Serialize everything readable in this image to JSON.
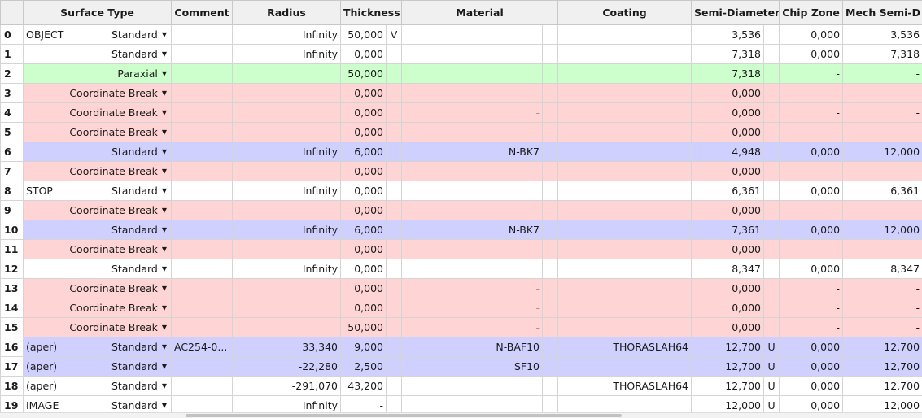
{
  "headers": {
    "surface_type": "Surface Type",
    "comment": "Comment",
    "radius": "Radius",
    "thickness": "Thickness",
    "material": "Material",
    "coating": "Coating",
    "semi_diameter": "Semi-Diameter",
    "chip_zone": "Chip Zone",
    "mech_semi_d": "Mech Semi-D"
  },
  "rows": [
    {
      "num": "0",
      "label": "OBJECT",
      "type": "Standard",
      "comment": "",
      "radius": "Infinity",
      "thickness": "50,000",
      "thick_solve": "V",
      "material": "",
      "coating": "",
      "semi_diameter": "3,536",
      "sd_solve": "",
      "chip_zone": "0,000",
      "mech": "3,536",
      "style": "plain"
    },
    {
      "num": "1",
      "label": "",
      "type": "Standard",
      "comment": "",
      "radius": "Infinity",
      "thickness": "0,000",
      "thick_solve": "",
      "material": "",
      "coating": "",
      "semi_diameter": "7,318",
      "sd_solve": "",
      "chip_zone": "0,000",
      "mech": "7,318",
      "style": "plain"
    },
    {
      "num": "2",
      "label": "",
      "type": "Paraxial",
      "comment": "",
      "radius": "",
      "thickness": "50,000",
      "thick_solve": "",
      "material": "",
      "coating": "",
      "semi_diameter": "7,318",
      "sd_solve": "",
      "chip_zone": "-",
      "mech": "-",
      "style": "paraxial"
    },
    {
      "num": "3",
      "label": "",
      "type": "Coordinate Break",
      "comment": "",
      "radius": "",
      "thickness": "0,000",
      "thick_solve": "",
      "material": "-",
      "coating": "",
      "semi_diameter": "0,000",
      "sd_solve": "",
      "chip_zone": "-",
      "mech": "-",
      "style": "cbreak"
    },
    {
      "num": "4",
      "label": "",
      "type": "Coordinate Break",
      "comment": "",
      "radius": "",
      "thickness": "0,000",
      "thick_solve": "",
      "material": "-",
      "coating": "",
      "semi_diameter": "0,000",
      "sd_solve": "",
      "chip_zone": "-",
      "mech": "-",
      "style": "cbreak"
    },
    {
      "num": "5",
      "label": "",
      "type": "Coordinate Break",
      "comment": "",
      "radius": "",
      "thickness": "0,000",
      "thick_solve": "",
      "material": "-",
      "coating": "",
      "semi_diameter": "0,000",
      "sd_solve": "",
      "chip_zone": "-",
      "mech": "-",
      "style": "cbreak"
    },
    {
      "num": "6",
      "label": "",
      "type": "Standard",
      "comment": "",
      "radius": "Infinity",
      "thickness": "6,000",
      "thick_solve": "",
      "material": "N-BK7",
      "coating": "",
      "semi_diameter": "4,948",
      "sd_solve": "",
      "chip_zone": "0,000",
      "mech": "12,000",
      "style": "lens"
    },
    {
      "num": "7",
      "label": "",
      "type": "Coordinate Break",
      "comment": "",
      "radius": "",
      "thickness": "0,000",
      "thick_solve": "",
      "material": "-",
      "coating": "",
      "semi_diameter": "0,000",
      "sd_solve": "",
      "chip_zone": "-",
      "mech": "-",
      "style": "cbreak"
    },
    {
      "num": "8",
      "label": "STOP",
      "type": "Standard",
      "comment": "",
      "radius": "Infinity",
      "thickness": "0,000",
      "thick_solve": "",
      "material": "",
      "coating": "",
      "semi_diameter": "6,361",
      "sd_solve": "",
      "chip_zone": "0,000",
      "mech": "6,361",
      "style": "plain"
    },
    {
      "num": "9",
      "label": "",
      "type": "Coordinate Break",
      "comment": "",
      "radius": "",
      "thickness": "0,000",
      "thick_solve": "",
      "material": "-",
      "coating": "",
      "semi_diameter": "0,000",
      "sd_solve": "",
      "chip_zone": "-",
      "mech": "-",
      "style": "cbreak"
    },
    {
      "num": "10",
      "label": "",
      "type": "Standard",
      "comment": "",
      "radius": "Infinity",
      "thickness": "6,000",
      "thick_solve": "",
      "material": "N-BK7",
      "coating": "",
      "semi_diameter": "7,361",
      "sd_solve": "",
      "chip_zone": "0,000",
      "mech": "12,000",
      "style": "lens"
    },
    {
      "num": "11",
      "label": "",
      "type": "Coordinate Break",
      "comment": "",
      "radius": "",
      "thickness": "0,000",
      "thick_solve": "",
      "material": "-",
      "coating": "",
      "semi_diameter": "0,000",
      "sd_solve": "",
      "chip_zone": "-",
      "mech": "-",
      "style": "cbreak"
    },
    {
      "num": "12",
      "label": "",
      "type": "Standard",
      "comment": "",
      "radius": "Infinity",
      "thickness": "0,000",
      "thick_solve": "",
      "material": "",
      "coating": "",
      "semi_diameter": "8,347",
      "sd_solve": "",
      "chip_zone": "0,000",
      "mech": "8,347",
      "style": "plain"
    },
    {
      "num": "13",
      "label": "",
      "type": "Coordinate Break",
      "comment": "",
      "radius": "",
      "thickness": "0,000",
      "thick_solve": "",
      "material": "-",
      "coating": "",
      "semi_diameter": "0,000",
      "sd_solve": "",
      "chip_zone": "-",
      "mech": "-",
      "style": "cbreak"
    },
    {
      "num": "14",
      "label": "",
      "type": "Coordinate Break",
      "comment": "",
      "radius": "",
      "thickness": "0,000",
      "thick_solve": "",
      "material": "-",
      "coating": "",
      "semi_diameter": "0,000",
      "sd_solve": "",
      "chip_zone": "-",
      "mech": "-",
      "style": "cbreak"
    },
    {
      "num": "15",
      "label": "",
      "type": "Coordinate Break",
      "comment": "",
      "radius": "",
      "thickness": "50,000",
      "thick_solve": "",
      "material": "-",
      "coating": "",
      "semi_diameter": "0,000",
      "sd_solve": "",
      "chip_zone": "-",
      "mech": "-",
      "style": "cbreak"
    },
    {
      "num": "16",
      "label": "(aper)",
      "type": "Standard",
      "comment": "AC254-0...",
      "radius": "33,340",
      "thickness": "9,000",
      "thick_solve": "",
      "material": "N-BAF10",
      "coating": "THORASLAH64",
      "semi_diameter": "12,700",
      "sd_solve": "U",
      "chip_zone": "0,000",
      "mech": "12,700",
      "style": "lens"
    },
    {
      "num": "17",
      "label": "(aper)",
      "type": "Standard",
      "comment": "",
      "radius": "-22,280",
      "thickness": "2,500",
      "thick_solve": "",
      "material": "SF10",
      "coating": "",
      "semi_diameter": "12,700",
      "sd_solve": "U",
      "chip_zone": "0,000",
      "mech": "12,700",
      "style": "lens"
    },
    {
      "num": "18",
      "label": "(aper)",
      "type": "Standard",
      "comment": "",
      "radius": "-291,070",
      "thickness": "43,200",
      "thick_solve": "",
      "material": "",
      "coating": "THORASLAH64",
      "semi_diameter": "12,700",
      "sd_solve": "U",
      "chip_zone": "0,000",
      "mech": "12,700",
      "style": "plain"
    },
    {
      "num": "19",
      "label": "IMAGE",
      "type": "Standard",
      "comment": "",
      "radius": "Infinity",
      "thickness": "-",
      "thick_solve": "",
      "material": "",
      "coating": "",
      "semi_diameter": "12,000",
      "sd_solve": "U",
      "chip_zone": "0,000",
      "mech": "12,000",
      "style": "plain"
    }
  ],
  "colors": {
    "paraxial": "#ccffcc",
    "coordinate_break": "#ffd4d4",
    "lens": "#d0d0ff",
    "plain": "#ffffff"
  },
  "icons": {
    "type_dropdown": "caret-down-icon"
  }
}
